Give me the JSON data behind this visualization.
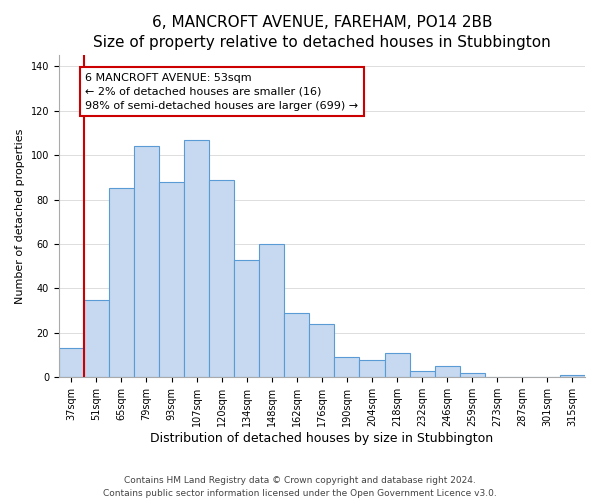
{
  "title": "6, MANCROFT AVENUE, FAREHAM, PO14 2BB",
  "subtitle": "Size of property relative to detached houses in Stubbington",
  "xlabel": "Distribution of detached houses by size in Stubbington",
  "ylabel": "Number of detached properties",
  "bar_labels": [
    "37sqm",
    "51sqm",
    "65sqm",
    "79sqm",
    "93sqm",
    "107sqm",
    "120sqm",
    "134sqm",
    "148sqm",
    "162sqm",
    "176sqm",
    "190sqm",
    "204sqm",
    "218sqm",
    "232sqm",
    "246sqm",
    "259sqm",
    "273sqm",
    "287sqm",
    "301sqm",
    "315sqm"
  ],
  "bar_values": [
    13,
    35,
    85,
    104,
    88,
    107,
    89,
    53,
    60,
    29,
    24,
    9,
    8,
    11,
    3,
    5,
    2,
    0,
    0,
    0,
    1
  ],
  "bar_color": "#c6d9f0",
  "bar_edge_color": "#5a9bd5",
  "vline_x": 1.0,
  "vline_color": "#cc0000",
  "annotation_line1": "6 MANCROFT AVENUE: 53sqm",
  "annotation_line2": "← 2% of detached houses are smaller (16)",
  "annotation_line3": "98% of semi-detached houses are larger (699) →",
  "annotation_box_color": "#ffffff",
  "annotation_box_edge": "#cc0000",
  "ylim": [
    0,
    145
  ],
  "yticks": [
    0,
    20,
    40,
    60,
    80,
    100,
    120,
    140
  ],
  "footer_line1": "Contains HM Land Registry data © Crown copyright and database right 2024.",
  "footer_line2": "Contains public sector information licensed under the Open Government Licence v3.0.",
  "title_fontsize": 11,
  "subtitle_fontsize": 9.5,
  "xlabel_fontsize": 9,
  "ylabel_fontsize": 8,
  "tick_fontsize": 7,
  "footer_fontsize": 6.5,
  "annotation_fontsize": 8
}
